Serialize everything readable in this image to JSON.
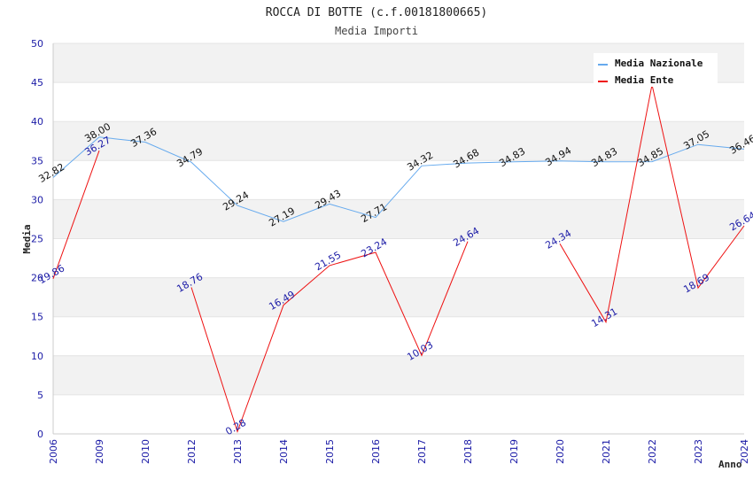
{
  "chart_data": {
    "type": "line",
    "title": "ROCCA DI BOTTE (c.f.00181800665)",
    "subtitle": "Media Importi",
    "xlabel": "Anno",
    "ylabel": "Media",
    "ylim": [
      0,
      50
    ],
    "yticks": [
      "0",
      "5",
      "10",
      "15",
      "20",
      "25",
      "30",
      "35",
      "40",
      "45",
      "50"
    ],
    "categories": [
      "2006",
      "2009",
      "2010",
      "2012",
      "2013",
      "2014",
      "2015",
      "2016",
      "2017",
      "2018",
      "2019",
      "2020",
      "2021",
      "2022",
      "2023",
      "2024"
    ],
    "series": [
      {
        "name": "Media Nazionale",
        "color": "#66aaee",
        "values": [
          32.82,
          38.0,
          37.36,
          34.79,
          29.24,
          27.19,
          29.43,
          27.71,
          34.32,
          34.68,
          34.83,
          34.94,
          34.83,
          34.85,
          37.05,
          36.46
        ],
        "labels": [
          "32.82",
          "38.00",
          "37.36",
          "34.79",
          "29.24",
          "27.19",
          "29.43",
          "27.71",
          "34.32",
          "34.68",
          "34.83",
          "34.94",
          "34.83",
          "34.85",
          "37.05",
          "36.46"
        ]
      },
      {
        "name": "Media Ente",
        "color": "#ee1111",
        "values": [
          19.86,
          36.27,
          null,
          18.76,
          0.28,
          16.49,
          21.55,
          23.24,
          10.03,
          24.64,
          null,
          24.34,
          14.31,
          44.69,
          18.69,
          26.64
        ],
        "labels": [
          "19.86",
          "36.27",
          "",
          "18.76",
          "0.28",
          "16.49",
          "21.55",
          "23.24",
          "10.03",
          "24.64",
          "",
          "24.34",
          "14.31",
          "",
          "18.69",
          "26.64"
        ]
      }
    ],
    "legend": "top-right",
    "grid": true
  }
}
